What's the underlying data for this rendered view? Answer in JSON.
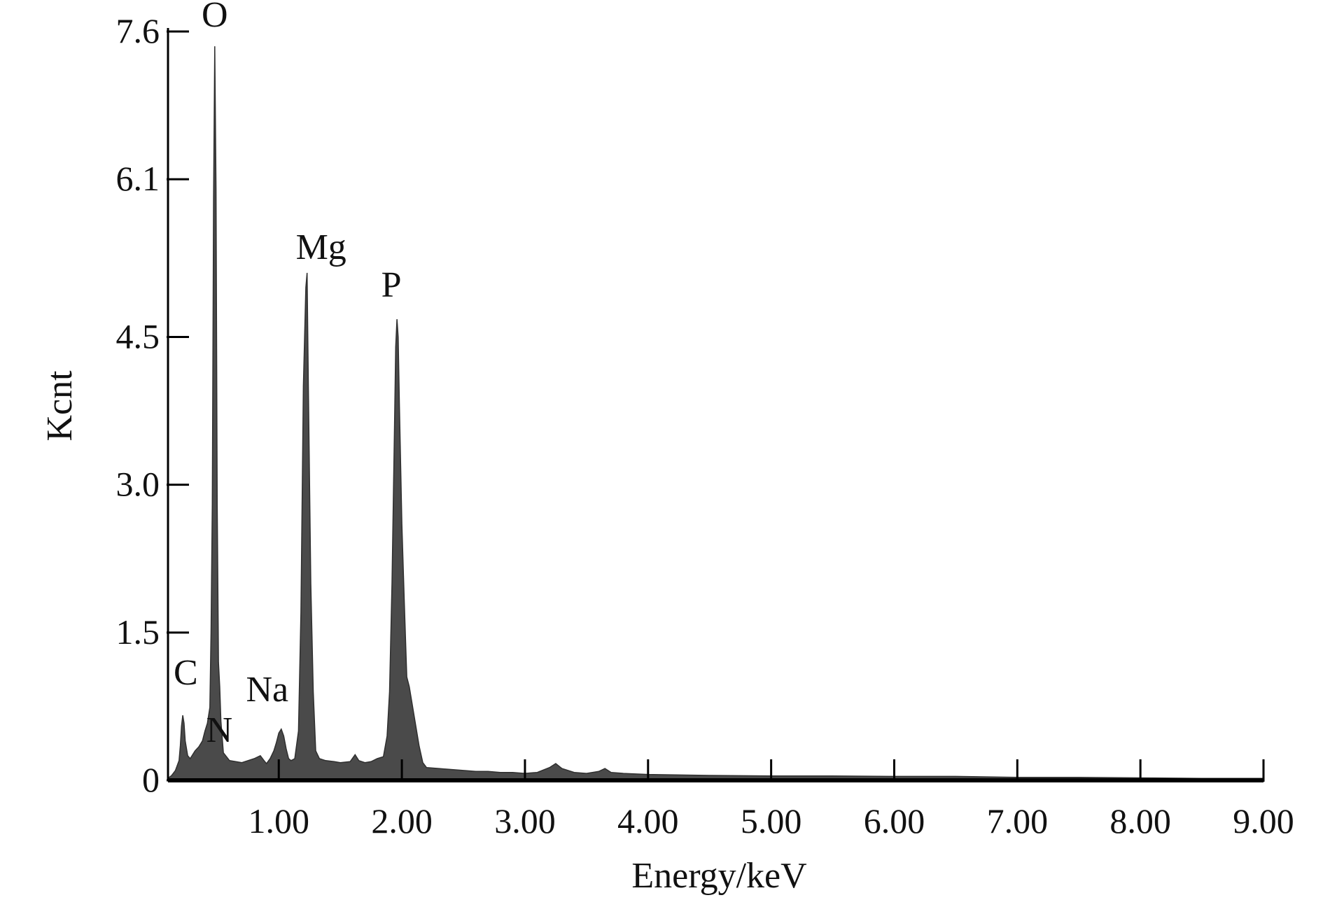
{
  "chart_data": {
    "type": "area",
    "xlabel": "Energy/keV",
    "ylabel": "Kcnt",
    "xlim": [
      0.1,
      9.0
    ],
    "ylim": [
      0,
      7.6
    ],
    "x_ticks": [
      {
        "value": 1.0,
        "label": "1.00"
      },
      {
        "value": 2.0,
        "label": "2.00"
      },
      {
        "value": 3.0,
        "label": "3.00"
      },
      {
        "value": 4.0,
        "label": "4.00"
      },
      {
        "value": 5.0,
        "label": "5.00"
      },
      {
        "value": 6.0,
        "label": "6.00"
      },
      {
        "value": 7.0,
        "label": "7.00"
      },
      {
        "value": 8.0,
        "label": "8.00"
      },
      {
        "value": 9.0,
        "label": "9.00"
      }
    ],
    "y_ticks": [
      {
        "value": 0,
        "label": "0"
      },
      {
        "value": 1.5,
        "label": "1.5"
      },
      {
        "value": 3.0,
        "label": "3.0"
      },
      {
        "value": 4.5,
        "label": "4.5"
      },
      {
        "value": 6.1,
        "label": "6.1"
      },
      {
        "value": 7.6,
        "label": "7.6"
      }
    ],
    "grid": false,
    "fill_color": "#4a4a4a",
    "series": [
      {
        "points": [
          [
            0.1,
            0.02
          ],
          [
            0.13,
            0.05
          ],
          [
            0.16,
            0.1
          ],
          [
            0.19,
            0.2
          ],
          [
            0.2,
            0.35
          ],
          [
            0.21,
            0.55
          ],
          [
            0.22,
            0.66
          ],
          [
            0.23,
            0.58
          ],
          [
            0.24,
            0.4
          ],
          [
            0.26,
            0.25
          ],
          [
            0.28,
            0.22
          ],
          [
            0.3,
            0.26
          ],
          [
            0.32,
            0.3
          ],
          [
            0.35,
            0.34
          ],
          [
            0.38,
            0.4
          ],
          [
            0.4,
            0.5
          ],
          [
            0.42,
            0.58
          ],
          [
            0.44,
            0.74
          ],
          [
            0.45,
            1.5
          ],
          [
            0.46,
            2.8
          ],
          [
            0.47,
            5.9
          ],
          [
            0.48,
            7.45
          ],
          [
            0.49,
            6.0
          ],
          [
            0.5,
            2.8
          ],
          [
            0.51,
            1.2
          ],
          [
            0.52,
            0.95
          ],
          [
            0.53,
            0.6
          ],
          [
            0.55,
            0.28
          ],
          [
            0.6,
            0.2
          ],
          [
            0.65,
            0.19
          ],
          [
            0.7,
            0.18
          ],
          [
            0.75,
            0.2
          ],
          [
            0.8,
            0.22
          ],
          [
            0.85,
            0.25
          ],
          [
            0.88,
            0.2
          ],
          [
            0.9,
            0.17
          ],
          [
            0.93,
            0.22
          ],
          [
            0.96,
            0.3
          ],
          [
            0.98,
            0.38
          ],
          [
            1.0,
            0.48
          ],
          [
            1.02,
            0.52
          ],
          [
            1.04,
            0.45
          ],
          [
            1.06,
            0.32
          ],
          [
            1.08,
            0.22
          ],
          [
            1.1,
            0.2
          ],
          [
            1.13,
            0.22
          ],
          [
            1.16,
            0.5
          ],
          [
            1.18,
            1.7
          ],
          [
            1.2,
            4.0
          ],
          [
            1.22,
            5.0
          ],
          [
            1.23,
            5.15
          ],
          [
            1.24,
            4.0
          ],
          [
            1.26,
            2.0
          ],
          [
            1.28,
            0.9
          ],
          [
            1.3,
            0.3
          ],
          [
            1.33,
            0.22
          ],
          [
            1.38,
            0.2
          ],
          [
            1.45,
            0.19
          ],
          [
            1.5,
            0.18
          ],
          [
            1.58,
            0.19
          ],
          [
            1.62,
            0.26
          ],
          [
            1.65,
            0.2
          ],
          [
            1.7,
            0.18
          ],
          [
            1.75,
            0.19
          ],
          [
            1.8,
            0.22
          ],
          [
            1.85,
            0.24
          ],
          [
            1.88,
            0.45
          ],
          [
            1.9,
            0.9
          ],
          [
            1.92,
            2.0
          ],
          [
            1.94,
            3.6
          ],
          [
            1.95,
            4.4
          ],
          [
            1.96,
            4.68
          ],
          [
            1.97,
            4.5
          ],
          [
            1.98,
            3.8
          ],
          [
            2.0,
            2.6
          ],
          [
            2.02,
            1.8
          ],
          [
            2.04,
            1.05
          ],
          [
            2.06,
            0.95
          ],
          [
            2.08,
            0.8
          ],
          [
            2.1,
            0.65
          ],
          [
            2.12,
            0.5
          ],
          [
            2.14,
            0.35
          ],
          [
            2.17,
            0.18
          ],
          [
            2.2,
            0.13
          ],
          [
            2.3,
            0.12
          ],
          [
            2.4,
            0.11
          ],
          [
            2.5,
            0.1
          ],
          [
            2.6,
            0.09
          ],
          [
            2.7,
            0.09
          ],
          [
            2.8,
            0.08
          ],
          [
            2.9,
            0.08
          ],
          [
            3.0,
            0.07
          ],
          [
            3.1,
            0.08
          ],
          [
            3.2,
            0.13
          ],
          [
            3.25,
            0.17
          ],
          [
            3.3,
            0.12
          ],
          [
            3.4,
            0.08
          ],
          [
            3.5,
            0.07
          ],
          [
            3.6,
            0.09
          ],
          [
            3.65,
            0.12
          ],
          [
            3.7,
            0.08
          ],
          [
            3.8,
            0.07
          ],
          [
            4.0,
            0.06
          ],
          [
            4.5,
            0.05
          ],
          [
            5.0,
            0.045
          ],
          [
            5.5,
            0.045
          ],
          [
            6.0,
            0.04
          ],
          [
            6.5,
            0.04
          ],
          [
            7.0,
            0.03
          ],
          [
            7.5,
            0.03
          ],
          [
            8.0,
            0.025
          ],
          [
            8.5,
            0.02
          ],
          [
            9.0,
            0.02
          ]
        ]
      }
    ],
    "annotations": [
      {
        "text": "O",
        "x": 0.48,
        "y": 7.45
      },
      {
        "text": "Mg",
        "x": 1.23,
        "y": 5.15
      },
      {
        "text": "P",
        "x": 1.96,
        "y": 4.68
      },
      {
        "text": "C",
        "x": 0.21,
        "y": 0.66
      },
      {
        "text": "N",
        "x": 0.33,
        "y": 0.32
      },
      {
        "text": "Na",
        "x": 1.02,
        "y": 0.52
      }
    ]
  }
}
